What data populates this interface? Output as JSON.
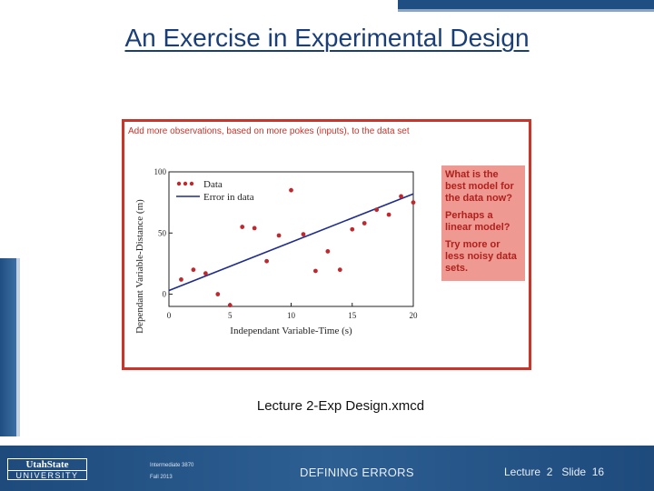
{
  "slide": {
    "title": "An Exercise in Experimental Design",
    "file_label": "Lecture 2-Exp Design.xmcd"
  },
  "figure": {
    "caption": "Add more observations, based on more pokes (inputs), to the data set",
    "note_lines": [
      "What is the best model for the data now?",
      "Perhaps a linear model?",
      "Try more or less noisy data sets."
    ],
    "colors": {
      "frame": "#c7352b",
      "note_bg": "#ee9a93",
      "note_text": "#b0201c",
      "data": "#c0282d",
      "fit": "#1f2d8c"
    }
  },
  "chart_data": {
    "type": "scatter",
    "xlabel": "Independant Variable-Time (s)",
    "ylabel": "Dependant Variable-Distance (m)",
    "xlim": [
      0,
      20
    ],
    "ylim": [
      -10,
      100
    ],
    "xticks": [
      "0",
      "5",
      "10",
      "15",
      "20"
    ],
    "yticks": [
      "0",
      "50",
      "100"
    ],
    "legend_position": "top-left",
    "series": [
      {
        "name": "Data",
        "style": "points",
        "x": [
          1,
          2,
          3,
          4,
          5,
          6,
          7,
          8,
          9,
          10,
          11,
          12,
          13,
          14,
          15,
          16,
          17,
          18,
          19,
          20
        ],
        "y": [
          12,
          20,
          17,
          0,
          -9,
          55,
          54,
          27,
          48,
          85,
          49,
          19,
          35,
          20,
          53,
          58,
          69,
          65,
          80,
          75
        ]
      },
      {
        "name": "Error in data",
        "style": "line",
        "x": [
          0,
          20
        ],
        "y": [
          3,
          82
        ]
      }
    ]
  },
  "footer": {
    "logo_top": "UtahState",
    "logo_bottom": "UNIVERSITY",
    "course": "Intermediate 3870",
    "term": "Fall 2013",
    "center": "DEFINING ERRORS",
    "right": "Lecture  2   Slide  16"
  }
}
